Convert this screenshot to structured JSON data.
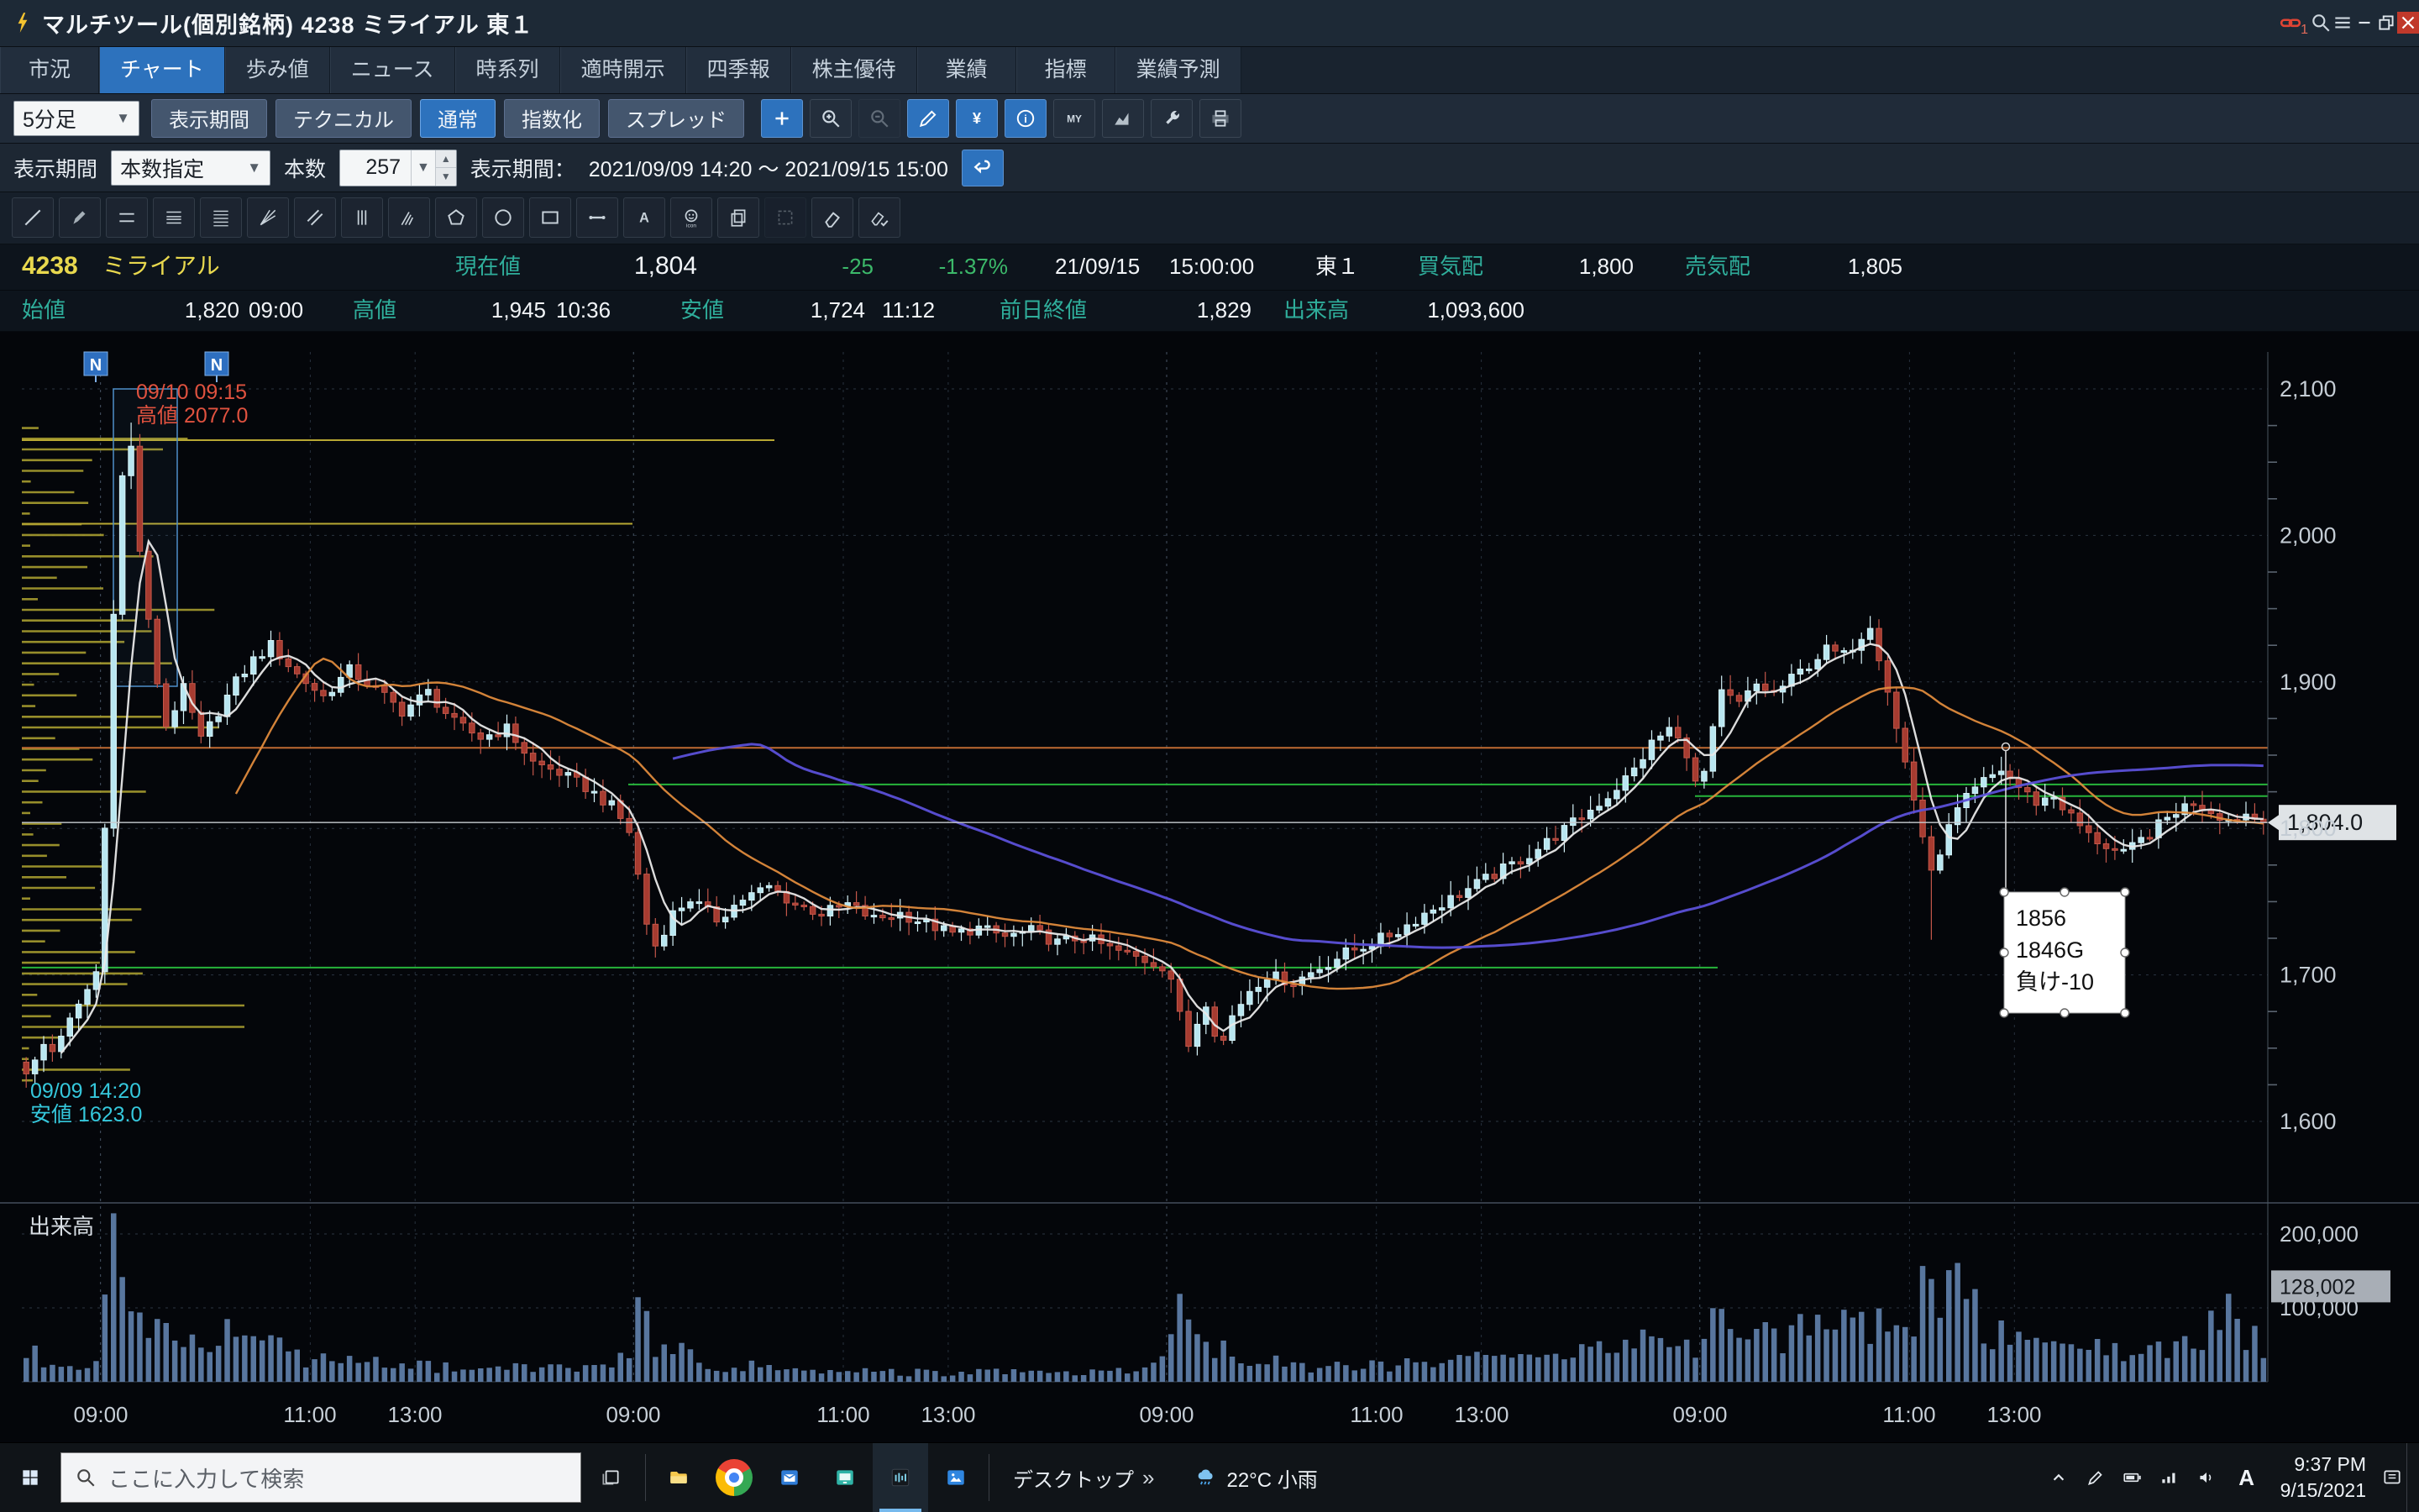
{
  "titlebar": {
    "title": "マルチツール(個別銘柄) 4238 ミライアル 東１",
    "link_badge": "1"
  },
  "tabs": {
    "items": [
      "市況",
      "チャート",
      "歩み値",
      "ニュース",
      "時系列",
      "適時開示",
      "四季報",
      "株主優待",
      "業績",
      "指標",
      "業績予測"
    ],
    "active_index": 1
  },
  "toolbar": {
    "timeframe": "5分足",
    "buttons": [
      "表示期間",
      "テクニカル",
      "通常",
      "指数化",
      "スプレッド"
    ],
    "active_button": "通常",
    "icon_buttons": [
      {
        "name": "crosshair-plus",
        "icon": "plus",
        "variant": "blue"
      },
      {
        "name": "zoom-in",
        "icon": "zoom-in",
        "variant": "dark"
      },
      {
        "name": "zoom-out",
        "icon": "zoom-out",
        "variant": "dim"
      },
      {
        "name": "draw-pencil",
        "icon": "pencil",
        "variant": "blue"
      },
      {
        "name": "yen",
        "icon": "yen",
        "variant": "blue"
      },
      {
        "name": "info",
        "icon": "info",
        "variant": "blue"
      },
      {
        "name": "my-menu",
        "icon": "my",
        "variant": "dark"
      },
      {
        "name": "area-chart",
        "icon": "area",
        "variant": "dark"
      },
      {
        "name": "settings-wrench",
        "icon": "wrench",
        "variant": "dark"
      },
      {
        "name": "print",
        "icon": "print",
        "variant": "dark"
      }
    ]
  },
  "period": {
    "label": "表示期間",
    "mode": "本数指定",
    "count_label": "本数",
    "count_value": "257",
    "range_label": "表示期間：",
    "range": "2021/09/09 14:20 ～ 2021/09/15 15:00"
  },
  "draw_tools": [
    {
      "name": "trendline",
      "icon": "trendline"
    },
    {
      "name": "freehand-pen",
      "icon": "pen"
    },
    {
      "name": "horizontal-lines",
      "icon": "hlines"
    },
    {
      "name": "fibonacci-lines",
      "icon": "fiblines"
    },
    {
      "name": "grid-lines",
      "icon": "denselines"
    },
    {
      "name": "gann-fan",
      "icon": "gann"
    },
    {
      "name": "parallel-channel",
      "icon": "channel"
    },
    {
      "name": "vertical-lines",
      "icon": "vlines"
    },
    {
      "name": "pitchfork",
      "icon": "pitchfork"
    },
    {
      "name": "polygon",
      "icon": "polygon"
    },
    {
      "name": "ellipse",
      "icon": "ellipse"
    },
    {
      "name": "rectangle",
      "icon": "rectangle"
    },
    {
      "name": "segment",
      "icon": "segment"
    },
    {
      "name": "text",
      "icon": "text"
    },
    {
      "name": "icon-stamp",
      "icon": "icon-stamp"
    },
    {
      "name": "duplicate",
      "icon": "copy"
    },
    {
      "name": "select",
      "icon": "select",
      "dim": true
    },
    {
      "name": "eraser",
      "icon": "eraser"
    },
    {
      "name": "clear-drawings",
      "icon": "eraser-check"
    }
  ],
  "quote": {
    "code": "4238",
    "name": "ミライアル",
    "current_label": "現在値",
    "current": "1,804",
    "change": "-25",
    "change_pct": "-1.37%",
    "date": "21/09/15",
    "time": "15:00:00",
    "market": "東１",
    "bid_label": "買気配",
    "bid": "1,800",
    "ask_label": "売気配",
    "ask": "1,805",
    "open_label": "始値",
    "open": "1,820",
    "open_time": "09:00",
    "high_label": "高値",
    "high": "1,945",
    "high_time": "10:36",
    "low_label": "安値",
    "low": "1,724",
    "low_time": "11:12",
    "prev_label": "前日終値",
    "prev_close": "1,829",
    "volume_label": "出来高",
    "volume": "1,093,600"
  },
  "chart_data": {
    "type": "candlestick",
    "symbol": "4238",
    "interval": "5min",
    "bars": 257,
    "pane_label": "出来高",
    "current_price": 1804,
    "current_price_label": "1,804.0",
    "y_axis": {
      "min": 1600,
      "max": 2100,
      "ticks": [
        {
          "price": 2100,
          "label": "2,100"
        },
        {
          "price": 2000,
          "label": "2,000"
        },
        {
          "price": 1900,
          "label": "1,900"
        },
        {
          "price": 1800,
          "label": "1,800"
        },
        {
          "price": 1700,
          "label": "1,700"
        },
        {
          "price": 1600,
          "label": "1,600"
        }
      ]
    },
    "x_axis": {
      "day_starts": [
        9,
        70,
        131,
        192
      ],
      "intraday_offsets": [
        0,
        24,
        36
      ],
      "labels": [
        "09:00",
        "11:00",
        "13:00"
      ]
    },
    "price_waypoints": [
      [
        0,
        1635
      ],
      [
        1,
        1640
      ],
      [
        2,
        1652
      ],
      [
        3,
        1648
      ],
      [
        4,
        1660
      ],
      [
        5,
        1668
      ],
      [
        6,
        1678
      ],
      [
        7,
        1690
      ],
      [
        8,
        1702
      ],
      [
        9,
        1800
      ],
      [
        10,
        1950
      ],
      [
        11,
        2040
      ],
      [
        12,
        2060
      ],
      [
        13,
        1990
      ],
      [
        14,
        1940
      ],
      [
        15,
        1900
      ],
      [
        16,
        1870
      ],
      [
        18,
        1895
      ],
      [
        20,
        1860
      ],
      [
        22,
        1880
      ],
      [
        24,
        1900
      ],
      [
        26,
        1915
      ],
      [
        28,
        1925
      ],
      [
        31,
        1905
      ],
      [
        34,
        1890
      ],
      [
        37,
        1908
      ],
      [
        40,
        1895
      ],
      [
        43,
        1880
      ],
      [
        46,
        1893
      ],
      [
        49,
        1872
      ],
      [
        52,
        1862
      ],
      [
        55,
        1868
      ],
      [
        58,
        1845
      ],
      [
        61,
        1838
      ],
      [
        64,
        1828
      ],
      [
        67,
        1815
      ],
      [
        69,
        1798
      ],
      [
        70,
        1768
      ],
      [
        71,
        1735
      ],
      [
        72,
        1720
      ],
      [
        74,
        1742
      ],
      [
        76,
        1752
      ],
      [
        79,
        1738
      ],
      [
        82,
        1752
      ],
      [
        85,
        1760
      ],
      [
        88,
        1748
      ],
      [
        91,
        1742
      ],
      [
        94,
        1748
      ],
      [
        97,
        1738
      ],
      [
        100,
        1742
      ],
      [
        103,
        1735
      ],
      [
        106,
        1728
      ],
      [
        109,
        1732
      ],
      [
        112,
        1726
      ],
      [
        115,
        1730
      ],
      [
        118,
        1722
      ],
      [
        121,
        1726
      ],
      [
        124,
        1718
      ],
      [
        127,
        1712
      ],
      [
        130,
        1706
      ],
      [
        131,
        1698
      ],
      [
        132,
        1672
      ],
      [
        133,
        1652
      ],
      [
        134,
        1668
      ],
      [
        135,
        1682
      ],
      [
        136,
        1662
      ],
      [
        137,
        1655
      ],
      [
        138,
        1672
      ],
      [
        140,
        1690
      ],
      [
        142,
        1700
      ],
      [
        145,
        1695
      ],
      [
        148,
        1705
      ],
      [
        151,
        1715
      ],
      [
        154,
        1722
      ],
      [
        157,
        1730
      ],
      [
        160,
        1742
      ],
      [
        163,
        1752
      ],
      [
        166,
        1762
      ],
      [
        169,
        1772
      ],
      [
        172,
        1782
      ],
      [
        175,
        1795
      ],
      [
        178,
        1808
      ],
      [
        181,
        1822
      ],
      [
        184,
        1840
      ],
      [
        186,
        1858
      ],
      [
        188,
        1868
      ],
      [
        190,
        1852
      ],
      [
        191,
        1830
      ],
      [
        192,
        1838
      ],
      [
        193,
        1866
      ],
      [
        194,
        1892
      ],
      [
        196,
        1885
      ],
      [
        198,
        1898
      ],
      [
        200,
        1892
      ],
      [
        202,
        1902
      ],
      [
        204,
        1912
      ],
      [
        206,
        1922
      ],
      [
        208,
        1918
      ],
      [
        210,
        1932
      ],
      [
        211,
        1940
      ],
      [
        212,
        1918
      ],
      [
        213,
        1895
      ],
      [
        214,
        1868
      ],
      [
        215,
        1845
      ],
      [
        216,
        1820
      ],
      [
        217,
        1795
      ],
      [
        218,
        1768
      ],
      [
        219,
        1785
      ],
      [
        220,
        1800
      ],
      [
        221,
        1812
      ],
      [
        222,
        1820
      ],
      [
        224,
        1832
      ],
      [
        226,
        1840
      ],
      [
        228,
        1828
      ],
      [
        230,
        1818
      ],
      [
        232,
        1822
      ],
      [
        234,
        1808
      ],
      [
        236,
        1795
      ],
      [
        238,
        1788
      ],
      [
        240,
        1782
      ],
      [
        242,
        1792
      ],
      [
        244,
        1802
      ],
      [
        246,
        1812
      ],
      [
        248,
        1818
      ],
      [
        250,
        1812
      ],
      [
        252,
        1806
      ],
      [
        254,
        1810
      ],
      [
        256,
        1804
      ]
    ],
    "specials": [
      {
        "i": 0,
        "low": 1623
      },
      {
        "i": 12,
        "high": 2077
      },
      {
        "i": 211,
        "high": 1945
      },
      {
        "i": 218,
        "low": 1724
      }
    ],
    "volume_waypoints": [
      [
        0,
        45000
      ],
      [
        2,
        30000
      ],
      [
        4,
        22000
      ],
      [
        6,
        18000
      ],
      [
        8,
        20000
      ],
      [
        9,
        160000
      ],
      [
        10,
        225000
      ],
      [
        11,
        190000
      ],
      [
        12,
        150000
      ],
      [
        13,
        120000
      ],
      [
        14,
        95000
      ],
      [
        16,
        70000
      ],
      [
        18,
        55000
      ],
      [
        20,
        65000
      ],
      [
        22,
        75000
      ],
      [
        24,
        55000
      ],
      [
        26,
        45000
      ],
      [
        28,
        50000
      ],
      [
        30,
        38000
      ],
      [
        34,
        30000
      ],
      [
        38,
        26000
      ],
      [
        42,
        22000
      ],
      [
        46,
        20000
      ],
      [
        50,
        18000
      ],
      [
        54,
        16000
      ],
      [
        58,
        20000
      ],
      [
        62,
        22000
      ],
      [
        66,
        25000
      ],
      [
        69,
        32000
      ],
      [
        70,
        85000
      ],
      [
        71,
        70000
      ],
      [
        72,
        55000
      ],
      [
        74,
        40000
      ],
      [
        77,
        30000
      ],
      [
        80,
        24000
      ],
      [
        84,
        20000
      ],
      [
        88,
        17000
      ],
      [
        92,
        15000
      ],
      [
        96,
        13000
      ],
      [
        100,
        14000
      ],
      [
        104,
        12000
      ],
      [
        108,
        14000
      ],
      [
        112,
        12000
      ],
      [
        116,
        13000
      ],
      [
        120,
        15000
      ],
      [
        124,
        17000
      ],
      [
        128,
        20000
      ],
      [
        130,
        24000
      ],
      [
        131,
        65000
      ],
      [
        132,
        85000
      ],
      [
        133,
        75000
      ],
      [
        135,
        50000
      ],
      [
        137,
        42000
      ],
      [
        140,
        32000
      ],
      [
        144,
        24000
      ],
      [
        148,
        20000
      ],
      [
        152,
        22000
      ],
      [
        156,
        24000
      ],
      [
        160,
        28000
      ],
      [
        164,
        30000
      ],
      [
        168,
        32000
      ],
      [
        172,
        34000
      ],
      [
        176,
        38000
      ],
      [
        180,
        42000
      ],
      [
        184,
        52000
      ],
      [
        187,
        58000
      ],
      [
        189,
        48000
      ],
      [
        191,
        42000
      ],
      [
        192,
        95000
      ],
      [
        193,
        80000
      ],
      [
        195,
        65000
      ],
      [
        198,
        55000
      ],
      [
        201,
        60000
      ],
      [
        204,
        65000
      ],
      [
        207,
        70000
      ],
      [
        210,
        85000
      ],
      [
        212,
        100000
      ],
      [
        214,
        85000
      ],
      [
        216,
        95000
      ],
      [
        218,
        130000
      ],
      [
        220,
        120000
      ],
      [
        222,
        155000
      ],
      [
        224,
        90000
      ],
      [
        226,
        70000
      ],
      [
        228,
        55000
      ],
      [
        231,
        48000
      ],
      [
        234,
        52000
      ],
      [
        237,
        45000
      ],
      [
        240,
        40000
      ],
      [
        243,
        44000
      ],
      [
        246,
        50000
      ],
      [
        249,
        55000
      ],
      [
        252,
        95000
      ],
      [
        254,
        60000
      ],
      [
        256,
        45000
      ]
    ],
    "volume_axis": {
      "ticks": [
        {
          "v": 200000,
          "label": "200,000"
        },
        {
          "v": 100000,
          "label": "100,000"
        }
      ],
      "current_label": "128,002",
      "current_value": 128002
    },
    "moving_averages": [
      {
        "period": 5,
        "color": "#e8e8e8"
      },
      {
        "period": 25,
        "color": "#de8a3c"
      },
      {
        "period": 75,
        "color": "#5b50d8"
      }
    ],
    "candle_colors": {
      "up_fill": "#b9e6f0",
      "up_stroke": "#d6f3f9",
      "down_fill": "#a63b30",
      "down_stroke": "#c4574a"
    },
    "volume_color": "#5d7ca6",
    "levels": {
      "horizontal": [
        {
          "price": 1855,
          "color": "#c06a32",
          "x0": 0,
          "x1": 1
        },
        {
          "price": 1830,
          "color": "#27b43a",
          "x0": 0.27,
          "x1": 1
        },
        {
          "price": 1822,
          "color": "#27b43a",
          "x0": 0.745,
          "x1": 1
        },
        {
          "price": 1705,
          "color": "#27b43a",
          "x0": 0,
          "x1": 0.755
        }
      ],
      "yellow_levels": [
        {
          "price": 2065,
          "x1_frac": 0.335
        },
        {
          "price": 2008,
          "x1_frac": 0.272
        }
      ],
      "profile_color": "#a89d2f"
    },
    "selection_box": {
      "bar0": 10.5,
      "bar1": 17.8,
      "price_top": 2100,
      "price_bottom": 1897
    },
    "annotations": {
      "news_markers": {
        "label": "N",
        "bars": [
          8.5,
          22.3
        ]
      },
      "high_note": {
        "lines": [
          "09/10 09:15",
          "高値 2077.0"
        ],
        "color": "#e0523f"
      },
      "low_note": {
        "lines": [
          "09/09 14:20",
          "安値 1623.0"
        ],
        "color": "#35c8dc"
      },
      "memo_box": {
        "lines": [
          "1856",
          "1846G",
          "負け-10"
        ]
      }
    }
  },
  "taskbar": {
    "search_placeholder": "ここに入力して検索",
    "apps": [
      {
        "name": "explorer",
        "icon": "folder"
      },
      {
        "name": "chrome",
        "icon": "chrome"
      },
      {
        "name": "mail",
        "icon": "mail"
      },
      {
        "name": "remote-monitor",
        "icon": "monitor"
      },
      {
        "name": "trading-app",
        "icon": "appchart",
        "active": true
      },
      {
        "name": "photos",
        "icon": "photos"
      }
    ],
    "desktop_label": "デスクトップ",
    "chevrons": "»",
    "weather": "22°C 小雨",
    "tray": [
      {
        "name": "hidden-icons",
        "icon": "chevup"
      },
      {
        "name": "pen-input",
        "icon": "penT"
      },
      {
        "name": "battery",
        "icon": "battery"
      },
      {
        "name": "network",
        "icon": "net"
      },
      {
        "name": "volume",
        "icon": "speaker"
      }
    ],
    "ime": "A",
    "clock": {
      "time": "9:37 PM",
      "date": "9/15/2021"
    }
  }
}
